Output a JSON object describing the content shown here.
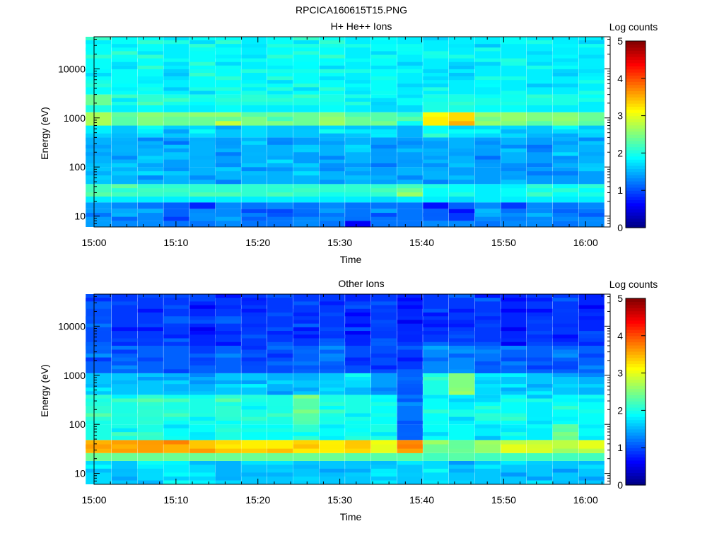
{
  "page_title": "RPCICA160615T15.PNG",
  "colorbar_ticks": [
    "0",
    "1",
    "2",
    "3",
    "4",
    "5"
  ],
  "chart_data": [
    {
      "type": "heatmap",
      "title": "H+ He++ Ions",
      "xlabel": "Time",
      "ylabel": "Energy (eV)",
      "colorbar_label": "Log counts",
      "colorbar_range": [
        0,
        5
      ],
      "yscale": "log",
      "ylim": [
        6,
        45000
      ],
      "xlim": [
        "15:00",
        "16:03"
      ],
      "xticks": [
        "15:00",
        "15:10",
        "15:20",
        "15:30",
        "15:40",
        "15:50",
        "16:00"
      ],
      "yticks": [
        "10",
        "100",
        "1000",
        "10000"
      ],
      "time_bins": [
        "15:00:32",
        "15:03:42",
        "15:06:52",
        "15:10:02",
        "15:13:12",
        "15:16:22",
        "15:19:32",
        "15:22:42",
        "15:25:52",
        "15:29:02",
        "15:32:12",
        "15:35:22",
        "15:38:32",
        "15:41:42",
        "15:44:52",
        "15:48:02",
        "15:51:12",
        "15:54:22",
        "15:57:32",
        "16:00:42"
      ],
      "energy_bands": [
        {
          "low": 6,
          "high": 8,
          "values": [
            1.4,
            1.3,
            1.3,
            1.2,
            1.2,
            1.3,
            1.2,
            1.2,
            1.3,
            1.2,
            0.6,
            1.2,
            1.2,
            1.3,
            1.3,
            1.2,
            1.3,
            1.3,
            1.2,
            1.3
          ]
        },
        {
          "low": 8,
          "high": 14,
          "values": [
            1.4,
            1.3,
            1.3,
            1.1,
            1.3,
            1.3,
            1.1,
            1.2,
            1.3,
            1.2,
            1.2,
            1.2,
            1.2,
            1.1,
            0.9,
            1.3,
            1.2,
            1.3,
            1.3,
            1.3
          ]
        },
        {
          "low": 14,
          "high": 19,
          "values": [
            1.4,
            1.3,
            1.2,
            1.1,
            0.8,
            1.3,
            1.2,
            1.3,
            1.2,
            1.3,
            1.2,
            1.2,
            1.2,
            0.7,
            1.1,
            1.3,
            0.9,
            1.3,
            1.2,
            1.3
          ]
        },
        {
          "low": 19,
          "high": 25,
          "values": [
            1.8,
            1.8,
            1.8,
            1.8,
            1.8,
            1.8,
            1.8,
            1.8,
            1.8,
            1.8,
            1.8,
            1.7,
            1.8,
            1.8,
            1.7,
            1.8,
            1.8,
            1.8,
            1.8,
            1.8
          ]
        },
        {
          "low": 25,
          "high": 45,
          "values": [
            2.2,
            2.2,
            2.1,
            2.1,
            2.1,
            2.1,
            2.1,
            2.1,
            2.1,
            2.1,
            2.1,
            2.1,
            2.4,
            1.9,
            1.9,
            1.8,
            1.9,
            2.1,
            1.9,
            2.0
          ]
        },
        {
          "low": 45,
          "high": 100,
          "values": [
            1.6,
            1.5,
            1.5,
            1.5,
            1.5,
            1.5,
            1.5,
            1.5,
            1.5,
            1.5,
            1.5,
            1.4,
            1.5,
            1.5,
            1.4,
            1.4,
            1.4,
            1.4,
            1.4,
            1.4
          ]
        },
        {
          "low": 100,
          "high": 400,
          "values": [
            1.5,
            1.5,
            1.5,
            1.4,
            1.5,
            1.4,
            1.5,
            1.5,
            1.4,
            1.5,
            1.5,
            1.4,
            1.4,
            1.4,
            1.5,
            1.4,
            1.5,
            1.4,
            1.5,
            1.5
          ]
        },
        {
          "low": 400,
          "high": 700,
          "values": [
            1.8,
            1.6,
            1.7,
            1.6,
            1.7,
            1.6,
            1.7,
            1.6,
            1.6,
            1.7,
            1.6,
            1.6,
            1.5,
            1.9,
            1.9,
            1.7,
            1.7,
            1.6,
            1.7,
            1.6
          ]
        },
        {
          "low": 700,
          "high": 1300,
          "values": [
            2.7,
            2.3,
            2.5,
            2.4,
            2.4,
            2.6,
            2.5,
            2.4,
            2.4,
            2.5,
            2.4,
            2.3,
            2.1,
            3.2,
            3.3,
            2.6,
            2.6,
            2.5,
            2.5,
            2.4
          ]
        },
        {
          "low": 1300,
          "high": 1800,
          "values": [
            2.0,
            1.8,
            1.9,
            1.8,
            1.8,
            1.9,
            1.8,
            1.8,
            1.8,
            1.9,
            1.8,
            1.7,
            1.7,
            2.0,
            2.0,
            1.9,
            1.9,
            1.8,
            1.8,
            1.8
          ]
        },
        {
          "low": 1800,
          "high": 3000,
          "values": [
            2.4,
            2.0,
            2.1,
            2.0,
            2.0,
            2.0,
            2.0,
            2.0,
            2.0,
            2.0,
            2.0,
            1.9,
            1.9,
            2.0,
            2.0,
            2.0,
            2.0,
            2.0,
            2.0,
            2.0
          ]
        },
        {
          "low": 3000,
          "high": 45000,
          "values": [
            1.9,
            1.9,
            1.9,
            1.8,
            1.9,
            1.9,
            1.8,
            1.9,
            1.9,
            1.9,
            1.8,
            1.9,
            1.8,
            1.8,
            1.8,
            1.8,
            1.8,
            1.8,
            1.8,
            1.8
          ]
        }
      ]
    },
    {
      "type": "heatmap",
      "title": "Other Ions",
      "xlabel": "Time",
      "ylabel": "Energy (eV)",
      "colorbar_label": "Log counts",
      "colorbar_range": [
        0,
        5
      ],
      "yscale": "log",
      "ylim": [
        6,
        45000
      ],
      "xlim": [
        "15:00",
        "16:03"
      ],
      "xticks": [
        "15:00",
        "15:10",
        "15:20",
        "15:30",
        "15:40",
        "15:50",
        "16:00"
      ],
      "yticks": [
        "10",
        "100",
        "1000",
        "10000"
      ],
      "time_bins": [
        "15:00:32",
        "15:03:42",
        "15:06:52",
        "15:10:02",
        "15:13:12",
        "15:16:22",
        "15:19:32",
        "15:22:42",
        "15:25:52",
        "15:29:02",
        "15:32:12",
        "15:35:22",
        "15:38:32",
        "15:41:42",
        "15:44:52",
        "15:48:02",
        "15:51:12",
        "15:54:22",
        "15:57:32",
        "16:00:42"
      ],
      "energy_bands": [
        {
          "low": 6,
          "high": 18,
          "values": [
            1.7,
            1.6,
            1.7,
            1.8,
            1.7,
            1.5,
            1.6,
            1.6,
            1.6,
            1.6,
            1.6,
            1.6,
            1.6,
            1.7,
            1.6,
            1.6,
            1.6,
            1.6,
            1.6,
            1.6
          ]
        },
        {
          "low": 18,
          "high": 26,
          "values": [
            2.4,
            2.4,
            2.4,
            2.4,
            2.4,
            2.4,
            2.4,
            2.4,
            2.4,
            2.4,
            2.3,
            2.3,
            2.3,
            2.2,
            2.3,
            2.2,
            2.2,
            2.2,
            2.2,
            2.2
          ]
        },
        {
          "low": 26,
          "high": 48,
          "values": [
            3.5,
            3.6,
            3.6,
            3.5,
            3.4,
            3.3,
            3.2,
            3.2,
            3.3,
            3.2,
            3.4,
            3.0,
            3.7,
            2.4,
            2.4,
            2.6,
            3.0,
            3.0,
            2.8,
            3.0
          ]
        },
        {
          "low": 48,
          "high": 100,
          "values": [
            2.0,
            2.0,
            2.0,
            1.9,
            1.9,
            2.0,
            1.9,
            1.9,
            2.1,
            1.9,
            1.9,
            2.0,
            1.1,
            1.9,
            1.9,
            1.8,
            1.8,
            1.8,
            2.5,
            1.9
          ]
        },
        {
          "low": 100,
          "high": 400,
          "values": [
            2.1,
            2.0,
            2.1,
            2.0,
            2.0,
            2.1,
            2.0,
            2.0,
            2.3,
            2.0,
            2.0,
            1.9,
            1.2,
            1.9,
            1.8,
            1.9,
            1.9,
            1.8,
            1.9,
            1.9
          ]
        },
        {
          "low": 400,
          "high": 1100,
          "values": [
            1.6,
            1.6,
            1.6,
            1.5,
            1.5,
            1.6,
            1.6,
            1.5,
            1.6,
            1.6,
            1.7,
            1.4,
            1.1,
            2.0,
            2.5,
            1.7,
            1.6,
            1.6,
            1.6,
            1.5
          ]
        },
        {
          "low": 1100,
          "high": 4000,
          "values": [
            1.1,
            1.1,
            1.1,
            1.1,
            1.1,
            1.1,
            1.0,
            1.0,
            1.1,
            1.1,
            1.0,
            1.0,
            0.9,
            1.3,
            1.3,
            1.2,
            1.1,
            1.1,
            1.1,
            1.1
          ]
        },
        {
          "low": 4000,
          "high": 45000,
          "values": [
            1.0,
            0.9,
            0.9,
            0.9,
            0.8,
            0.9,
            0.9,
            0.9,
            0.9,
            0.9,
            0.8,
            0.9,
            0.8,
            0.9,
            0.9,
            0.9,
            0.8,
            0.9,
            0.9,
            0.8
          ]
        }
      ]
    }
  ]
}
